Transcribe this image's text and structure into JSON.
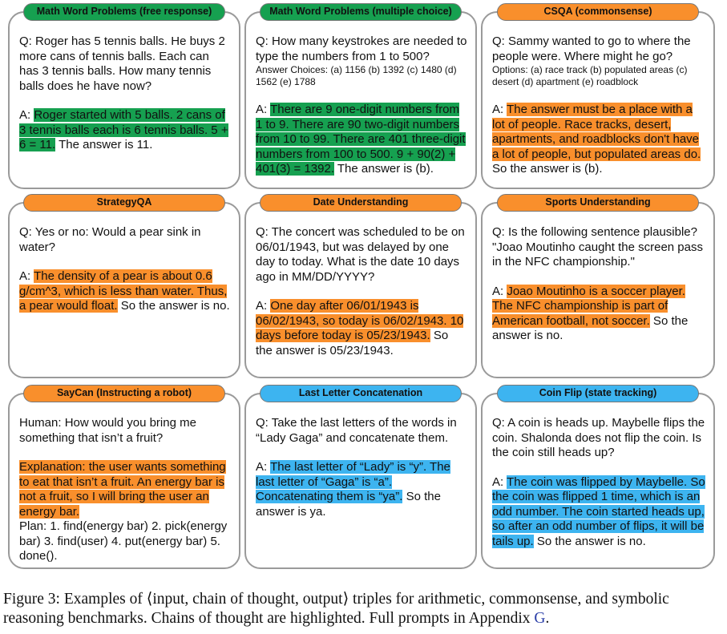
{
  "panels": [
    {
      "title": "Math Word Problems (free response)",
      "color": "#16a050",
      "question": "Q: Roger has 5 tennis balls. He buys 2 more cans of tennis balls. Each can has 3 tennis balls. How many tennis balls does he have now?",
      "answer": [
        {
          "text": "A: "
        },
        {
          "text": "Roger started with 5 balls. 2 cans of 3 tennis balls each is 6 tennis balls. 5 + 6 = 11.",
          "highlight": true
        },
        {
          "text": " The answer is 11."
        }
      ]
    },
    {
      "title": "Math Word Problems (multiple choice)",
      "color": "#16a050",
      "question": "Q: How many keystrokes are needed to type the numbers from 1 to 500?",
      "options": "Answer Choices: (a) 1156 (b) 1392 (c) 1480 (d) 1562 (e) 1788",
      "answer": [
        {
          "text": "A: "
        },
        {
          "text": "There are 9 one-digit numbers from 1 to 9. There are 90 two-digit numbers from 10 to 99. There are 401 three-digit numbers from 100 to 500. 9 + 90(2) + 401(3) = 1392.",
          "highlight": true
        },
        {
          "text": " The answer is (b)."
        }
      ]
    },
    {
      "title": "CSQA (commonsense)",
      "color": "#f98f2c",
      "question": "Q: Sammy wanted to go to where the people were. Where might he go?",
      "options": "Options: (a) race track (b) populated areas (c) desert (d) apartment (e) roadblock",
      "answer": [
        {
          "text": "A: "
        },
        {
          "text": "The answer must be a place with a lot of people. Race tracks, desert, apartments, and roadblocks don't have a lot of people, but populated areas do.",
          "highlight": true
        },
        {
          "text": " So the answer is (b)."
        }
      ]
    },
    {
      "title": "StrategyQA",
      "color": "#f98f2c",
      "question": "Q: Yes or no: Would a pear sink in water?",
      "answer": [
        {
          "text": "A: "
        },
        {
          "text": "The density of a pear is about 0.6 g/cm^3, which is less than water. Thus, a pear would float.",
          "highlight": true
        },
        {
          "text": " So the answer is no."
        }
      ]
    },
    {
      "title": "Date Understanding",
      "color": "#f98f2c",
      "question": "Q: The concert was scheduled to be on 06/01/1943, but was delayed by one day to today. What is the date 10 days ago in MM/DD/YYYY?",
      "answer": [
        {
          "text": "A: "
        },
        {
          "text": "One day after 06/01/1943 is 06/02/1943, so today is 06/02/1943. 10 days before today is 05/23/1943.",
          "highlight": true
        },
        {
          "text": " So the answer is 05/23/1943."
        }
      ]
    },
    {
      "title": "Sports Understanding",
      "color": "#f98f2c",
      "question": "Q: Is the following sentence plausible? \"Joao Moutinho caught the screen pass in the NFC championship.\"",
      "answer": [
        {
          "text": "A: "
        },
        {
          "text": "Joao Moutinho is a soccer player. The NFC championship is part of American football, not soccer.",
          "highlight": true
        },
        {
          "text": " So the answer is no."
        }
      ]
    },
    {
      "title": "SayCan (Instructing a robot)",
      "color": "#f98f2c",
      "question": "Human: How would you bring me something that isn’t a fruit?",
      "answer": [
        {
          "text": "Explanation: the user wants something to eat that isn’t a fruit. An energy bar is not a fruit, so I will bring the user an energy bar.",
          "highlight": true
        }
      ],
      "extra": "Plan: 1. find(energy bar) 2. pick(energy bar) 3. find(user) 4. put(energy bar) 5. done()."
    },
    {
      "title": "Last Letter Concatenation",
      "color": "#3db4f0",
      "question": "Q: Take the last letters of the words in “Lady Gaga” and concatenate them.",
      "answer": [
        {
          "text": "A: "
        },
        {
          "text": "The last letter of “Lady” is “y”. The last letter of “Gaga” is “a”. Concatenating them is “ya”.",
          "highlight": true
        },
        {
          "text": " So the answer is ya."
        }
      ]
    },
    {
      "title": "Coin Flip (state tracking)",
      "color": "#3db4f0",
      "question": "Q: A coin is heads up. Maybelle flips the coin. Shalonda does not flip the coin. Is the coin still heads up?",
      "answer": [
        {
          "text": "A: "
        },
        {
          "text": "The coin was flipped by Maybelle. So the coin was flipped 1 time, which is an odd number. The coin started heads up, so after an odd number of flips, it will be tails up.",
          "highlight": true
        },
        {
          "text": " So the answer is no."
        }
      ]
    }
  ],
  "caption": {
    "label": "Figure 3:",
    "text": "Examples of ⟨input, chain of thought, output⟩ triples for arithmetic, commonsense, and symbolic reasoning benchmarks. Chains of thought are highlighted. Full prompts in Appendix ",
    "link": "G",
    "end": "."
  }
}
